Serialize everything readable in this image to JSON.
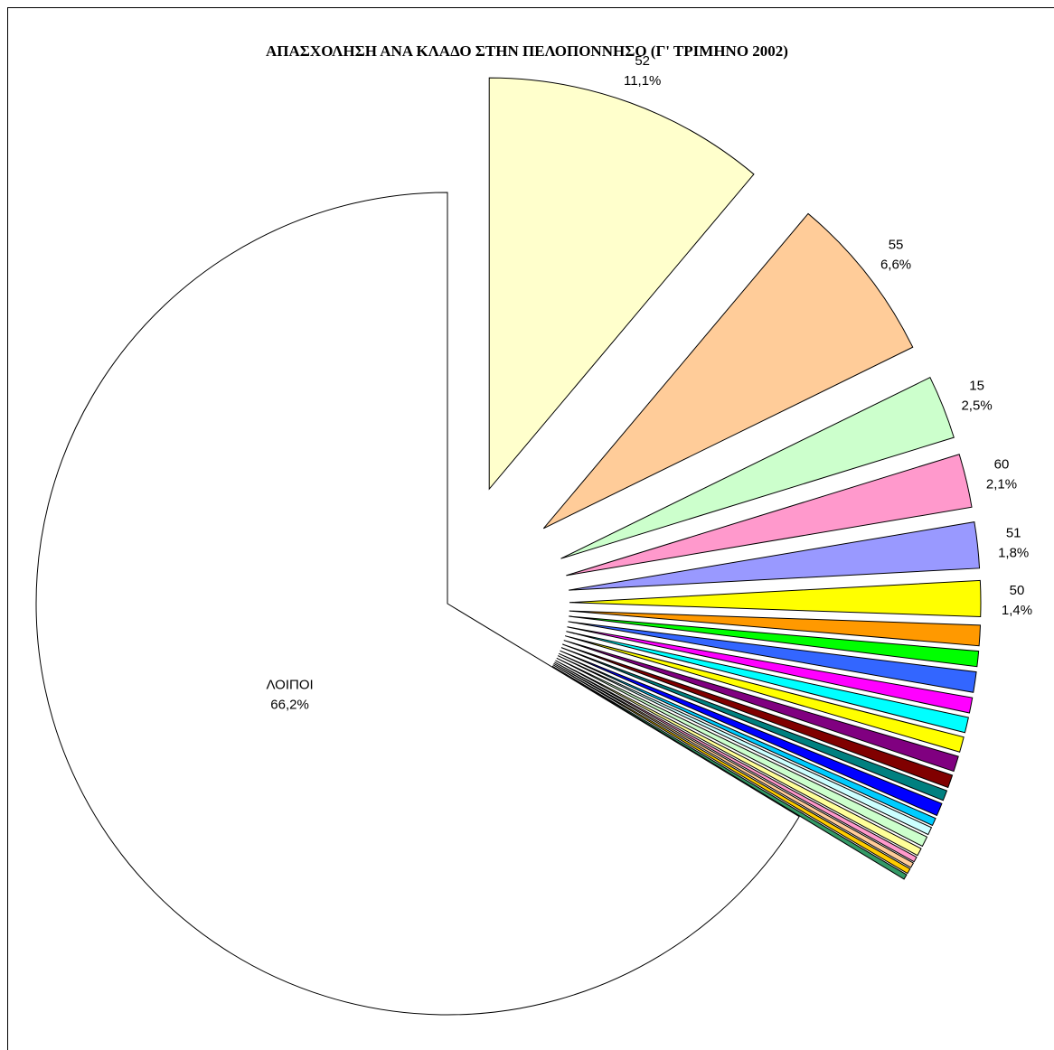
{
  "chart_data": {
    "type": "pie",
    "title": "ΑΠΑΣΧΟΛΗΣΗ ΑΝΑ ΚΛΑΔΟ ΣΤΗΝ ΠΕΛΟΠΟΝΝΗΣΟ  (Γ' ΤΡΙΜΗΝΟ 2002)",
    "categories": [
      "52",
      "55",
      "15",
      "60",
      "51",
      "50",
      null,
      null,
      null,
      null,
      null,
      null,
      null,
      null,
      null,
      null,
      null,
      null,
      null,
      null,
      null,
      null,
      null,
      null,
      "ΛΟΙΠΟΙ"
    ],
    "values": [
      11.1,
      6.6,
      2.5,
      2.1,
      1.8,
      1.4,
      0.8,
      0.6,
      0.8,
      0.6,
      0.6,
      0.6,
      0.6,
      0.5,
      0.4,
      0.5,
      0.3,
      0.3,
      0.4,
      0.3,
      0.2,
      0.2,
      0.2,
      0.2,
      66.2
    ],
    "value_labels": [
      "11,1%",
      "6,6%",
      "2,5%",
      "2,1%",
      "1,8%",
      "1,4%",
      null,
      null,
      null,
      null,
      null,
      null,
      null,
      null,
      null,
      null,
      null,
      null,
      null,
      null,
      null,
      null,
      null,
      null,
      "66,2%"
    ],
    "colors": [
      "#ffffcc",
      "#ffcc99",
      "#ccffcc",
      "#ff99cc",
      "#9999ff",
      "#ffff00",
      "#ff9900",
      "#00ff00",
      "#3366ff",
      "#ff00ff",
      "#00ffff",
      "#ffff00",
      "#800080",
      "#800000",
      "#008080",
      "#0000ff",
      "#00ccff",
      "#ccffff",
      "#ccffcc",
      "#ffff99",
      "#ff99cc",
      "#ffcc99",
      "#ffcc00",
      "#339966",
      "#ffffff"
    ]
  }
}
